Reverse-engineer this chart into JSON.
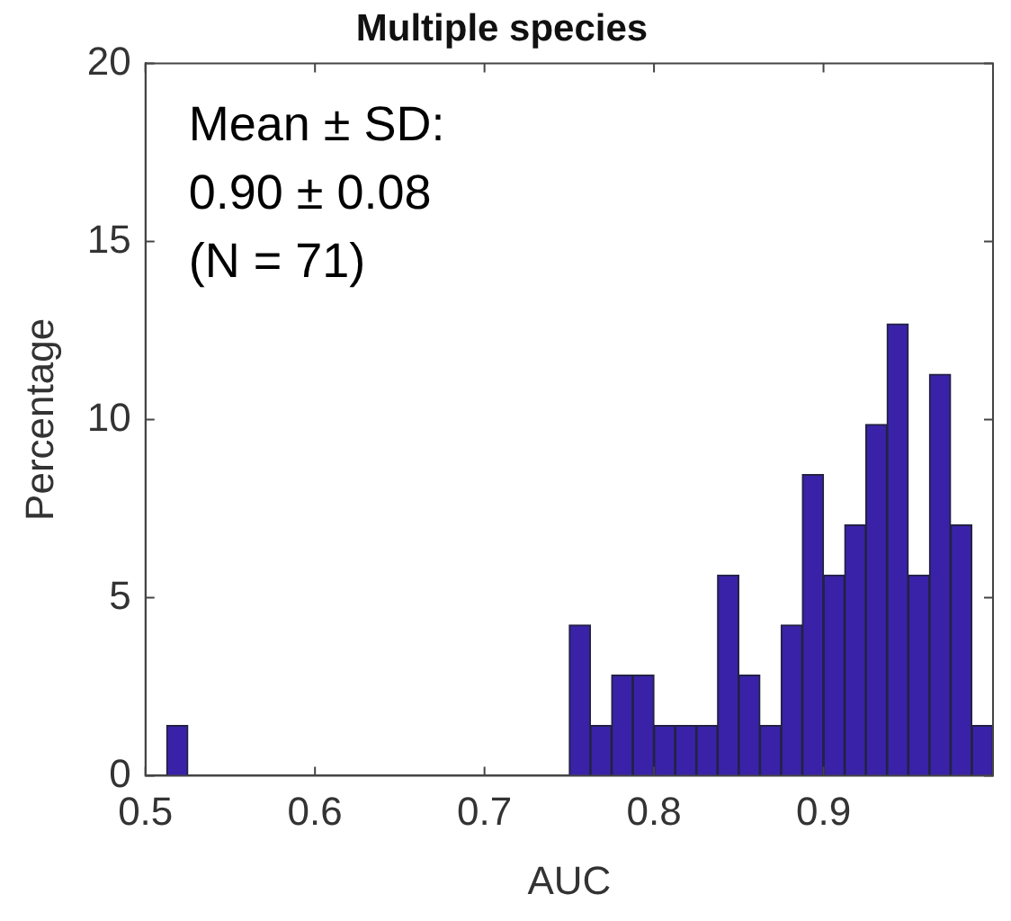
{
  "chart_data": {
    "type": "histogram",
    "title": "Multiple species",
    "xlabel": "AUC",
    "ylabel": "Percentage",
    "annotations": [
      "Mean ± SD:",
      "0.90 ± 0.08",
      "(N = 71)"
    ],
    "bins": [
      0.5,
      0.5125,
      0.525,
      0.5375,
      0.55,
      0.5625,
      0.575,
      0.5875,
      0.6,
      0.6125,
      0.625,
      0.6375,
      0.65,
      0.6625,
      0.675,
      0.6875,
      0.7,
      0.7125,
      0.725,
      0.7375,
      0.75,
      0.7625,
      0.775,
      0.7875,
      0.8,
      0.8125,
      0.825,
      0.8375,
      0.85,
      0.8625,
      0.875,
      0.8875,
      0.9,
      0.9125,
      0.925,
      0.9375,
      0.95,
      0.9625,
      0.975,
      0.9875,
      1.0
    ],
    "values": [
      0,
      1.41,
      0,
      0,
      0,
      0,
      0,
      0,
      0,
      0,
      0,
      0,
      0,
      0,
      0,
      0,
      0,
      0,
      0,
      0,
      4.23,
      1.41,
      2.82,
      2.82,
      1.41,
      1.41,
      1.41,
      5.63,
      2.82,
      1.41,
      4.23,
      8.45,
      5.63,
      7.04,
      9.86,
      12.68,
      5.63,
      11.27,
      7.04,
      1.41
    ],
    "color": "#3a22a8",
    "xlim": [
      0.5,
      1.0
    ],
    "xticks": [
      0.5,
      0.6,
      0.7,
      0.8,
      0.9
    ],
    "ylim": [
      0,
      20
    ],
    "yticks": [
      0,
      5,
      10,
      15,
      20
    ],
    "grid": false,
    "legend": false
  }
}
